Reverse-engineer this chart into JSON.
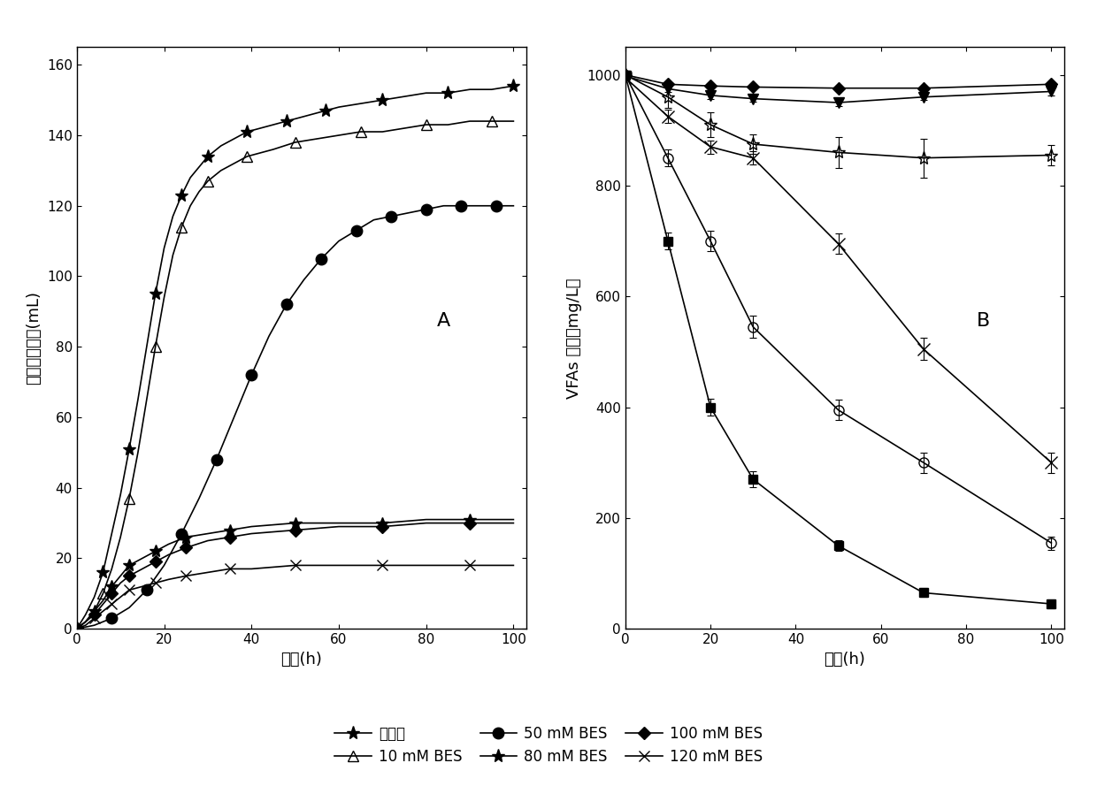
{
  "panel_A": {
    "title": "A",
    "xlabel": "时间(h)",
    "ylabel": "累积甲烷产量(mL)",
    "xlim": [
      0,
      103
    ],
    "ylim": [
      0,
      165
    ],
    "xticks": [
      0,
      20,
      40,
      60,
      80,
      100
    ],
    "yticks": [
      0,
      20,
      40,
      60,
      80,
      100,
      120,
      140,
      160
    ],
    "series": [
      {
        "label": "对照组",
        "marker": "*",
        "markersize": 11,
        "fillstyle": "full",
        "x": [
          0,
          2,
          4,
          6,
          8,
          10,
          12,
          14,
          16,
          18,
          20,
          22,
          24,
          26,
          28,
          30,
          33,
          36,
          39,
          42,
          45,
          48,
          51,
          54,
          57,
          60,
          65,
          70,
          75,
          80,
          85,
          90,
          95,
          100
        ],
        "y": [
          0,
          4,
          9,
          16,
          27,
          38,
          51,
          65,
          80,
          95,
          108,
          117,
          123,
          128,
          131,
          134,
          137,
          139,
          141,
          142,
          143,
          144,
          145,
          146,
          147,
          148,
          149,
          150,
          151,
          152,
          152,
          153,
          153,
          154
        ]
      },
      {
        "label": "10 mM BES",
        "marker": "^",
        "markersize": 8,
        "fillstyle": "none",
        "x": [
          0,
          2,
          4,
          6,
          8,
          10,
          12,
          14,
          16,
          18,
          20,
          22,
          24,
          26,
          28,
          30,
          33,
          36,
          39,
          42,
          45,
          50,
          55,
          60,
          65,
          70,
          75,
          80,
          85,
          90,
          95,
          100
        ],
        "y": [
          0,
          2,
          5,
          10,
          17,
          26,
          37,
          50,
          65,
          80,
          94,
          106,
          114,
          120,
          124,
          127,
          130,
          132,
          134,
          135,
          136,
          138,
          139,
          140,
          141,
          141,
          142,
          143,
          143,
          144,
          144,
          144
        ]
      },
      {
        "label": "50 mM BES",
        "marker": "o",
        "markersize": 9,
        "fillstyle": "full",
        "x": [
          0,
          4,
          8,
          12,
          16,
          20,
          24,
          28,
          32,
          36,
          40,
          44,
          48,
          52,
          56,
          60,
          64,
          68,
          72,
          76,
          80,
          84,
          88,
          92,
          96,
          100
        ],
        "y": [
          0,
          1,
          3,
          6,
          11,
          18,
          27,
          37,
          48,
          60,
          72,
          83,
          92,
          99,
          105,
          110,
          113,
          116,
          117,
          118,
          119,
          120,
          120,
          120,
          120,
          120
        ]
      },
      {
        "label": "80 mM BES",
        "marker": "*",
        "markersize": 10,
        "fillstyle": "full",
        "x": [
          0,
          2,
          4,
          6,
          8,
          10,
          12,
          15,
          18,
          21,
          25,
          30,
          35,
          40,
          50,
          60,
          70,
          80,
          90,
          100
        ],
        "y": [
          0,
          2,
          5,
          8,
          12,
          15,
          18,
          20,
          22,
          24,
          26,
          27,
          28,
          29,
          30,
          30,
          30,
          31,
          31,
          31
        ]
      },
      {
        "label": "100 mM BES",
        "marker": "D",
        "markersize": 7,
        "fillstyle": "full",
        "x": [
          0,
          2,
          4,
          6,
          8,
          10,
          12,
          15,
          18,
          21,
          25,
          30,
          35,
          40,
          50,
          60,
          70,
          80,
          90,
          100
        ],
        "y": [
          0,
          2,
          4,
          7,
          10,
          13,
          15,
          17,
          19,
          21,
          23,
          25,
          26,
          27,
          28,
          29,
          29,
          30,
          30,
          30
        ]
      },
      {
        "label": "120 mM BES",
        "marker": "x",
        "markersize": 9,
        "fillstyle": "full",
        "x": [
          0,
          2,
          4,
          6,
          8,
          10,
          12,
          15,
          18,
          21,
          25,
          30,
          35,
          40,
          50,
          60,
          70,
          80,
          90,
          100
        ],
        "y": [
          0,
          1,
          3,
          5,
          7,
          9,
          11,
          12,
          13,
          14,
          15,
          16,
          17,
          17,
          18,
          18,
          18,
          18,
          18,
          18
        ]
      }
    ]
  },
  "panel_B": {
    "title": "B",
    "xlabel": "时间(h)",
    "ylabel": "VFAs 浓度（mg/L）",
    "xlim": [
      0,
      103
    ],
    "ylim": [
      0,
      1050
    ],
    "xticks": [
      0,
      20,
      40,
      60,
      80,
      100
    ],
    "yticks": [
      0,
      200,
      400,
      600,
      800,
      1000
    ],
    "series": [
      {
        "label": "对照组",
        "marker": "s",
        "markersize": 7,
        "fillstyle": "full",
        "x": [
          0,
          10,
          20,
          30,
          50,
          70,
          100
        ],
        "y": [
          1000,
          700,
          400,
          270,
          150,
          65,
          45
        ],
        "yerr": [
          5,
          15,
          15,
          15,
          10,
          8,
          8
        ]
      },
      {
        "label": "50 mM BES",
        "marker": "o",
        "markersize": 8,
        "fillstyle": "none",
        "x": [
          0,
          10,
          20,
          30,
          50,
          70,
          100
        ],
        "y": [
          1000,
          850,
          700,
          545,
          395,
          300,
          155
        ],
        "yerr": [
          5,
          15,
          18,
          20,
          18,
          18,
          12
        ]
      },
      {
        "label": "120 mM BES",
        "marker": "x",
        "markersize": 10,
        "fillstyle": "full",
        "x": [
          0,
          10,
          20,
          30,
          50,
          70,
          100
        ],
        "y": [
          995,
          925,
          870,
          850,
          695,
          505,
          300
        ],
        "yerr": [
          5,
          12,
          12,
          12,
          18,
          20,
          18
        ]
      },
      {
        "label": "80 mM BES",
        "marker": "*",
        "markersize": 11,
        "fillstyle": "none",
        "x": [
          0,
          10,
          20,
          30,
          50,
          70,
          100
        ],
        "y": [
          1000,
          960,
          910,
          875,
          860,
          850,
          855
        ],
        "yerr": [
          5,
          20,
          22,
          18,
          28,
          35,
          18
        ]
      },
      {
        "label": "100 mM BES",
        "marker": "v",
        "markersize": 8,
        "fillstyle": "full",
        "x": [
          0,
          10,
          20,
          30,
          50,
          70,
          100
        ],
        "y": [
          998,
          975,
          963,
          957,
          950,
          960,
          970
        ],
        "yerr": [
          3,
          6,
          6,
          6,
          6,
          6,
          8
        ]
      },
      {
        "label": "10 mM BES",
        "marker": "D",
        "markersize": 7,
        "fillstyle": "full",
        "x": [
          0,
          10,
          20,
          30,
          50,
          70,
          100
        ],
        "y": [
          1000,
          983,
          980,
          978,
          976,
          976,
          983
        ],
        "yerr": [
          3,
          4,
          4,
          4,
          4,
          4,
          5
        ]
      }
    ]
  },
  "legend_entries": [
    {
      "label": "对照组",
      "marker": "*",
      "markersize": 11,
      "fillstyle": "full",
      "linestyle": "-"
    },
    {
      "label": "10 mM BES",
      "marker": "^",
      "markersize": 8,
      "fillstyle": "none",
      "linestyle": "-"
    },
    {
      "label": "50 mM BES",
      "marker": "o",
      "markersize": 9,
      "fillstyle": "full",
      "linestyle": "-"
    },
    {
      "label": "80 mM BES",
      "marker": "*",
      "markersize": 11,
      "fillstyle": "full",
      "linestyle": "-"
    },
    {
      "label": "100 mM BES",
      "marker": "D",
      "markersize": 7,
      "fillstyle": "full",
      "linestyle": "-"
    },
    {
      "label": "120 mM BES",
      "marker": "x",
      "markersize": 9,
      "fillstyle": "full",
      "linestyle": "-"
    }
  ],
  "font_size": 12,
  "tick_font_size": 11,
  "label_font_size": 13
}
